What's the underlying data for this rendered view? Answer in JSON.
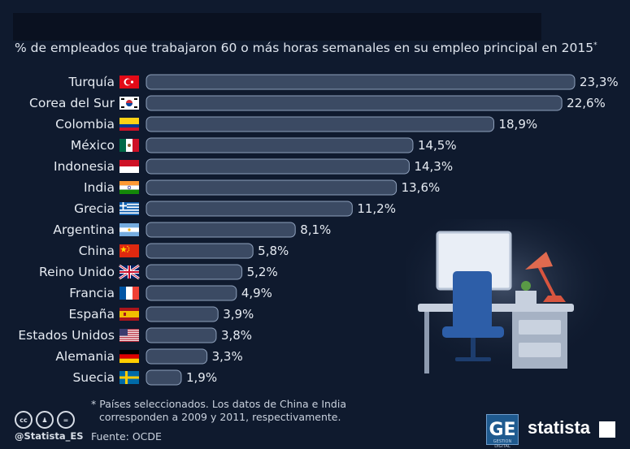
{
  "subtitle": "% de empleados que trabajaron 60 o más horas semanales en su empleo principal en 2015",
  "subtitle_mark": "*",
  "colors": {
    "background": "#0f1a2e",
    "bar_fill": "#3b4a63",
    "bar_stroke": "#8ea0bb",
    "text": "#e6ebf2"
  },
  "chart_data": {
    "type": "bar",
    "orientation": "horizontal",
    "categories": [
      "Turquía",
      "Corea del Sur",
      "Colombia",
      "México",
      "Indonesia",
      "India",
      "Grecia",
      "Argentina",
      "China",
      "Reino Unido",
      "Francia",
      "España",
      "Estados Unidos",
      "Alemania",
      "Suecia"
    ],
    "values": [
      23.3,
      22.6,
      18.9,
      14.5,
      14.3,
      13.6,
      11.2,
      8.1,
      5.8,
      5.2,
      4.9,
      3.9,
      3.8,
      3.3,
      1.9
    ],
    "value_labels": [
      "23,3%",
      "22,6%",
      "18,9%",
      "14,5%",
      "14,3%",
      "13,6%",
      "11,2%",
      "8,1%",
      "5,8%",
      "5,2%",
      "4,9%",
      "3,9%",
      "3,8%",
      "3,3%",
      "1,9%"
    ],
    "flags": [
      "flag-turkey",
      "flag-south-korea",
      "flag-colombia",
      "flag-mexico",
      "flag-indonesia",
      "flag-india",
      "flag-greece",
      "flag-argentina",
      "flag-china",
      "flag-united-kingdom",
      "flag-france",
      "flag-spain",
      "flag-united-states",
      "flag-germany",
      "flag-sweden"
    ],
    "xlim": [
      0,
      23.3
    ],
    "grid": false,
    "legend": "none"
  },
  "footnote": {
    "line1": "* Países seleccionados. Los datos de China e India",
    "line2": "corresponden a 2009 y 2011, respectivamente."
  },
  "source": "Fuente: OCDE",
  "handle": "@Statista_ES",
  "license_icons": [
    "cc",
    "by",
    "nd"
  ],
  "partner_logo": {
    "mark": "GE",
    "caption": "GESTION DIGITAL"
  },
  "brand": "statista"
}
